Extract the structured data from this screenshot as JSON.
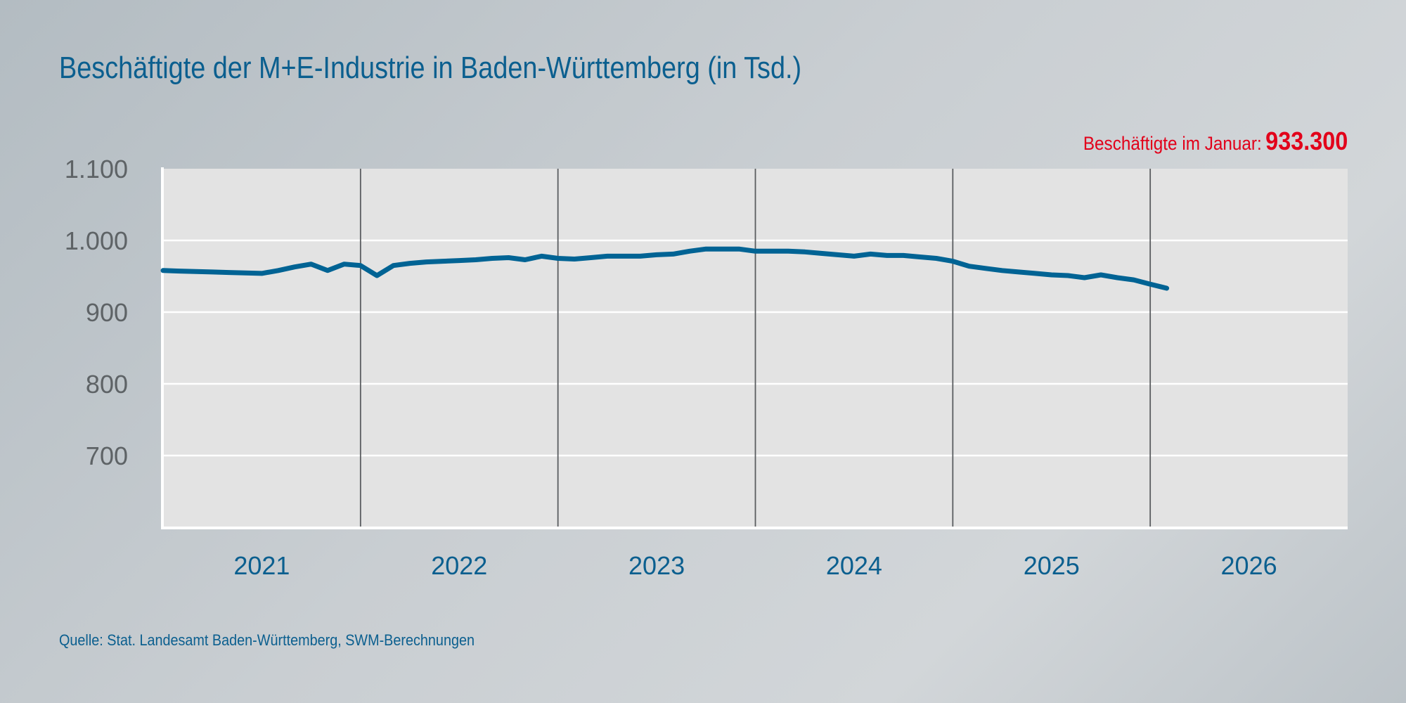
{
  "title": "Beschäftigte der M+E-Industrie in Baden-Württemberg (in Tsd.)",
  "annotation": {
    "label": "Beschäftigte im Januar:",
    "value": "933.300"
  },
  "source": "Quelle: Stat. Landesamt Baden-Württemberg, SWM-Berechnungen",
  "colors": {
    "line": "#006394",
    "title": "#0b5f8f",
    "highlight": "#e2001a",
    "plot_bg": "#e3e3e3"
  },
  "chart_data": {
    "type": "line",
    "title": "Beschäftigte der M+E-Industrie in Baden-Württemberg (in Tsd.)",
    "xlabel": "",
    "ylabel": "",
    "ylim": [
      600,
      1100
    ],
    "yticks": [
      700,
      800,
      900,
      1000,
      1100
    ],
    "ytick_labels": [
      "700",
      "800",
      "900",
      "1.000",
      "1.100"
    ],
    "xtick_labels": [
      "2021",
      "2022",
      "2023",
      "2024",
      "2025",
      "2026"
    ],
    "grid": "horizontal",
    "x": [
      "2020-12",
      "2021-01",
      "2021-02",
      "2021-03",
      "2021-04",
      "2021-05",
      "2021-06",
      "2021-07",
      "2021-08",
      "2021-09",
      "2021-10",
      "2021-11",
      "2021-12",
      "2022-01",
      "2022-02",
      "2022-03",
      "2022-04",
      "2022-05",
      "2022-06",
      "2022-07",
      "2022-08",
      "2022-09",
      "2022-10",
      "2022-11",
      "2022-12",
      "2023-01",
      "2023-02",
      "2023-03",
      "2023-04",
      "2023-05",
      "2023-06",
      "2023-07",
      "2023-08",
      "2023-09",
      "2023-10",
      "2023-11",
      "2023-12",
      "2024-01",
      "2024-02",
      "2024-03",
      "2024-04",
      "2024-05",
      "2024-06",
      "2024-07",
      "2024-08",
      "2024-09",
      "2024-10",
      "2024-11",
      "2024-12",
      "2025-01",
      "2025-02",
      "2025-03",
      "2025-04",
      "2025-05",
      "2025-06",
      "2025-07",
      "2025-08",
      "2025-09",
      "2025-10",
      "2025-11",
      "2025-12",
      "2026-01"
    ],
    "series": [
      {
        "values": [
          958,
          957.3,
          956.7,
          956,
          955.3,
          954.7,
          954,
          958,
          963,
          967,
          958,
          967,
          965,
          951,
          965,
          968,
          970,
          971,
          972,
          973,
          975,
          976,
          973,
          978,
          975,
          974,
          976,
          978,
          978,
          978,
          980,
          981,
          985,
          988,
          988,
          988,
          985,
          985,
          985,
          984,
          982,
          980,
          978,
          981,
          979,
          979,
          977,
          975,
          971,
          964,
          961,
          958,
          956,
          954,
          952,
          951,
          948,
          952,
          948,
          945,
          939,
          933.3
        ]
      }
    ]
  }
}
